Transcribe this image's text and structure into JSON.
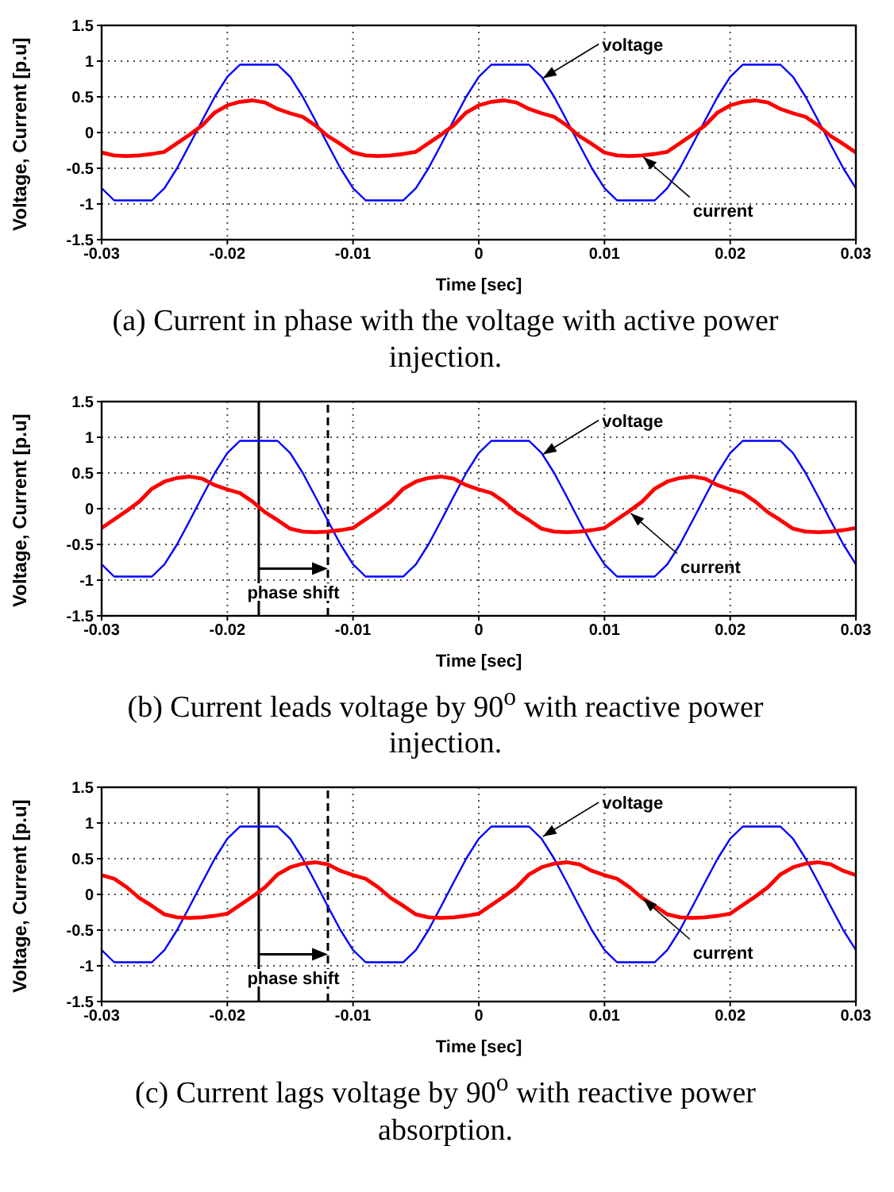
{
  "chart_data": [
    {
      "type": "line",
      "xlabel": "Time [sec]",
      "ylabel": "Voltage, Current [p.u]",
      "xlim": [
        -0.03,
        0.03
      ],
      "xticks": [
        -0.03,
        -0.02,
        -0.01,
        0,
        0.01,
        0.02,
        0.03
      ],
      "ylim": [
        -1.5,
        1.5
      ],
      "yticks": [
        -1.5,
        -1,
        -0.5,
        0,
        0.5,
        1,
        1.5
      ],
      "grid": true,
      "x": [
        -0.03,
        -0.029,
        -0.028,
        -0.027,
        -0.026,
        -0.025,
        -0.024,
        -0.023,
        -0.022,
        -0.021,
        -0.02,
        -0.019,
        -0.018,
        -0.017,
        -0.016,
        -0.015,
        -0.014,
        -0.013,
        -0.012,
        -0.011,
        -0.01,
        -0.009,
        -0.008,
        -0.007,
        -0.006,
        -0.005,
        -0.004,
        -0.003,
        -0.002,
        -0.001,
        0,
        0.001,
        0.002,
        0.003,
        0.004,
        0.005,
        0.006,
        0.007,
        0.008,
        0.009,
        0.01,
        0.011,
        0.012,
        0.013,
        0.014,
        0.015,
        0.016,
        0.017,
        0.018,
        0.019,
        0.02,
        0.021,
        0.022,
        0.023,
        0.024,
        0.025,
        0.026,
        0.027,
        0.028,
        0.029,
        0.03
      ],
      "series": [
        {
          "color": "#0000ff",
          "values": [
            -0.78,
            -0.95,
            -0.95,
            -0.95,
            -0.95,
            -0.78,
            -0.5,
            -0.17,
            0.17,
            0.5,
            0.78,
            0.95,
            0.95,
            0.95,
            0.95,
            0.78,
            0.5,
            0.17,
            -0.17,
            -0.5,
            -0.78,
            -0.95,
            -0.95,
            -0.95,
            -0.95,
            -0.78,
            -0.5,
            -0.17,
            0.17,
            0.5,
            0.78,
            0.95,
            0.95,
            0.95,
            0.95,
            0.78,
            0.5,
            0.17,
            -0.17,
            -0.5,
            -0.78,
            -0.95,
            -0.95,
            -0.95,
            -0.95,
            -0.78,
            -0.5,
            -0.17,
            0.17,
            0.5,
            0.78,
            0.95,
            0.95,
            0.95,
            0.95,
            0.78,
            0.5,
            0.17,
            -0.17,
            -0.5,
            -0.78
          ]
        },
        {
          "color": "#ff0000",
          "values": [
            -0.28,
            -0.32,
            -0.33,
            -0.32,
            -0.3,
            -0.27,
            -0.15,
            -0.03,
            0.1,
            0.28,
            0.38,
            0.43,
            0.45,
            0.42,
            0.33,
            0.27,
            0.22,
            0.1,
            -0.05,
            -0.16,
            -0.28,
            -0.32,
            -0.33,
            -0.32,
            -0.3,
            -0.27,
            -0.15,
            -0.03,
            0.1,
            0.28,
            0.38,
            0.43,
            0.45,
            0.42,
            0.33,
            0.27,
            0.22,
            0.1,
            -0.05,
            -0.16,
            -0.28,
            -0.32,
            -0.33,
            -0.32,
            -0.3,
            -0.27,
            -0.15,
            -0.03,
            0.1,
            0.28,
            0.38,
            0.43,
            0.45,
            0.42,
            0.33,
            0.27,
            0.22,
            0.1,
            -0.05,
            -0.16,
            -0.28
          ]
        }
      ],
      "annotations": [
        "(a) Current in phase with the voltage with active power injection.",
        {
          "text": "voltage",
          "x": 0.005,
          "y": 0.75
        },
        {
          "text": "current",
          "x": 0.013,
          "y": -0.33
        }
      ]
    },
    {
      "type": "line",
      "xlabel": "Time [sec]",
      "ylabel": "Voltage, Current [p.u]",
      "xlim": [
        -0.03,
        0.03
      ],
      "xticks": [
        -0.03,
        -0.02,
        -0.01,
        0,
        0.01,
        0.02,
        0.03
      ],
      "ylim": [
        -1.5,
        1.5
      ],
      "yticks": [
        -1.5,
        -1,
        -0.5,
        0,
        0.5,
        1,
        1.5
      ],
      "grid": true,
      "x": [
        -0.03,
        -0.029,
        -0.028,
        -0.027,
        -0.026,
        -0.025,
        -0.024,
        -0.023,
        -0.022,
        -0.021,
        -0.02,
        -0.019,
        -0.018,
        -0.017,
        -0.016,
        -0.015,
        -0.014,
        -0.013,
        -0.012,
        -0.011,
        -0.01,
        -0.009,
        -0.008,
        -0.007,
        -0.006,
        -0.005,
        -0.004,
        -0.003,
        -0.002,
        -0.001,
        0,
        0.001,
        0.002,
        0.003,
        0.004,
        0.005,
        0.006,
        0.007,
        0.008,
        0.009,
        0.01,
        0.011,
        0.012,
        0.013,
        0.014,
        0.015,
        0.016,
        0.017,
        0.018,
        0.019,
        0.02,
        0.021,
        0.022,
        0.023,
        0.024,
        0.025,
        0.026,
        0.027,
        0.028,
        0.029,
        0.03
      ],
      "series": [
        {
          "color": "#0000ff",
          "values": [
            -0.78,
            -0.95,
            -0.95,
            -0.95,
            -0.95,
            -0.78,
            -0.5,
            -0.17,
            0.17,
            0.5,
            0.78,
            0.95,
            0.95,
            0.95,
            0.95,
            0.78,
            0.5,
            0.17,
            -0.17,
            -0.5,
            -0.78,
            -0.95,
            -0.95,
            -0.95,
            -0.95,
            -0.78,
            -0.5,
            -0.17,
            0.17,
            0.5,
            0.78,
            0.95,
            0.95,
            0.95,
            0.95,
            0.78,
            0.5,
            0.17,
            -0.17,
            -0.5,
            -0.78,
            -0.95,
            -0.95,
            -0.95,
            -0.95,
            -0.78,
            -0.5,
            -0.17,
            0.17,
            0.5,
            0.78,
            0.95,
            0.95,
            0.95,
            0.95,
            0.78,
            0.5,
            0.17,
            -0.17,
            -0.5,
            -0.78
          ]
        },
        {
          "color": "#ff0000",
          "values": [
            -0.27,
            -0.15,
            -0.03,
            0.1,
            0.28,
            0.38,
            0.43,
            0.45,
            0.42,
            0.33,
            0.27,
            0.22,
            0.1,
            -0.05,
            -0.16,
            -0.28,
            -0.32,
            -0.33,
            -0.32,
            -0.3,
            -0.27,
            -0.15,
            -0.03,
            0.1,
            0.28,
            0.38,
            0.43,
            0.45,
            0.42,
            0.33,
            0.27,
            0.22,
            0.1,
            -0.05,
            -0.16,
            -0.28,
            -0.32,
            -0.33,
            -0.32,
            -0.3,
            -0.27,
            -0.15,
            -0.03,
            0.1,
            0.28,
            0.38,
            0.43,
            0.45,
            0.42,
            0.33,
            0.27,
            0.22,
            0.1,
            -0.05,
            -0.16,
            -0.28,
            -0.32,
            -0.33,
            -0.32,
            -0.3,
            -0.27
          ]
        }
      ],
      "ref_lines": [
        {
          "axis": "x",
          "value": -0.0175,
          "label": "phase shift",
          "color": "#000000",
          "line_style": "solid"
        },
        {
          "axis": "x",
          "value": -0.012,
          "color": "#000000",
          "line_style": "dashed"
        }
      ],
      "annotations": [
        "(b) Current leads voltage by 90$^{o}$ with reactive power injection.",
        {
          "text": "voltage",
          "x": 0.005,
          "y": 0.75
        },
        {
          "text": "current",
          "x": 0.012,
          "y": -0.05
        }
      ]
    },
    {
      "type": "line",
      "xlabel": "Time [sec]",
      "ylabel": "Voltage, Current [p.u]",
      "xlim": [
        -0.03,
        0.03
      ],
      "xticks": [
        -0.03,
        -0.02,
        -0.01,
        0,
        0.01,
        0.02,
        0.03
      ],
      "ylim": [
        -1.5,
        1.5
      ],
      "yticks": [
        -1.5,
        -1,
        -0.5,
        0,
        0.5,
        1,
        1.5
      ],
      "grid": true,
      "x": [
        -0.03,
        -0.029,
        -0.028,
        -0.027,
        -0.026,
        -0.025,
        -0.024,
        -0.023,
        -0.022,
        -0.021,
        -0.02,
        -0.019,
        -0.018,
        -0.017,
        -0.016,
        -0.015,
        -0.014,
        -0.013,
        -0.012,
        -0.011,
        -0.01,
        -0.009,
        -0.008,
        -0.007,
        -0.006,
        -0.005,
        -0.004,
        -0.003,
        -0.002,
        -0.001,
        0,
        0.001,
        0.002,
        0.003,
        0.004,
        0.005,
        0.006,
        0.007,
        0.008,
        0.009,
        0.01,
        0.011,
        0.012,
        0.013,
        0.014,
        0.015,
        0.016,
        0.017,
        0.018,
        0.019,
        0.02,
        0.021,
        0.022,
        0.023,
        0.024,
        0.025,
        0.026,
        0.027,
        0.028,
        0.029,
        0.03
      ],
      "series": [
        {
          "color": "#0000ff",
          "values": [
            -0.78,
            -0.95,
            -0.95,
            -0.95,
            -0.95,
            -0.78,
            -0.5,
            -0.17,
            0.17,
            0.5,
            0.78,
            0.95,
            0.95,
            0.95,
            0.95,
            0.78,
            0.5,
            0.17,
            -0.17,
            -0.5,
            -0.78,
            -0.95,
            -0.95,
            -0.95,
            -0.95,
            -0.78,
            -0.5,
            -0.17,
            0.17,
            0.5,
            0.78,
            0.95,
            0.95,
            0.95,
            0.95,
            0.78,
            0.5,
            0.17,
            -0.17,
            -0.5,
            -0.78,
            -0.95,
            -0.95,
            -0.95,
            -0.95,
            -0.78,
            -0.5,
            -0.17,
            0.17,
            0.5,
            0.78,
            0.95,
            0.95,
            0.95,
            0.95,
            0.78,
            0.5,
            0.17,
            -0.17,
            -0.5,
            -0.78
          ]
        },
        {
          "color": "#ff0000",
          "values": [
            0.27,
            0.22,
            0.1,
            -0.05,
            -0.16,
            -0.28,
            -0.32,
            -0.33,
            -0.32,
            -0.3,
            -0.27,
            -0.15,
            -0.03,
            0.1,
            0.28,
            0.38,
            0.43,
            0.45,
            0.42,
            0.33,
            0.27,
            0.22,
            0.1,
            -0.05,
            -0.16,
            -0.28,
            -0.32,
            -0.33,
            -0.32,
            -0.3,
            -0.27,
            -0.15,
            -0.03,
            0.1,
            0.28,
            0.38,
            0.43,
            0.45,
            0.42,
            0.33,
            0.27,
            0.22,
            0.1,
            -0.05,
            -0.16,
            -0.28,
            -0.32,
            -0.33,
            -0.32,
            -0.3,
            -0.27,
            -0.15,
            -0.03,
            0.1,
            0.28,
            0.38,
            0.43,
            0.45,
            0.42,
            0.33,
            0.27
          ]
        }
      ],
      "ref_lines": [
        {
          "axis": "x",
          "value": -0.0175,
          "label": "phase shift",
          "color": "#000000",
          "line_style": "solid"
        },
        {
          "axis": "x",
          "value": -0.012,
          "color": "#000000",
          "line_style": "dashed"
        }
      ],
      "annotations": [
        "(c) Current lags voltage by 90$^{o}$ with reactive power absorption.",
        {
          "text": "voltage",
          "x": 0.005,
          "y": 0.8
        },
        {
          "text": "current",
          "x": 0.013,
          "y": -0.05
        }
      ]
    }
  ]
}
